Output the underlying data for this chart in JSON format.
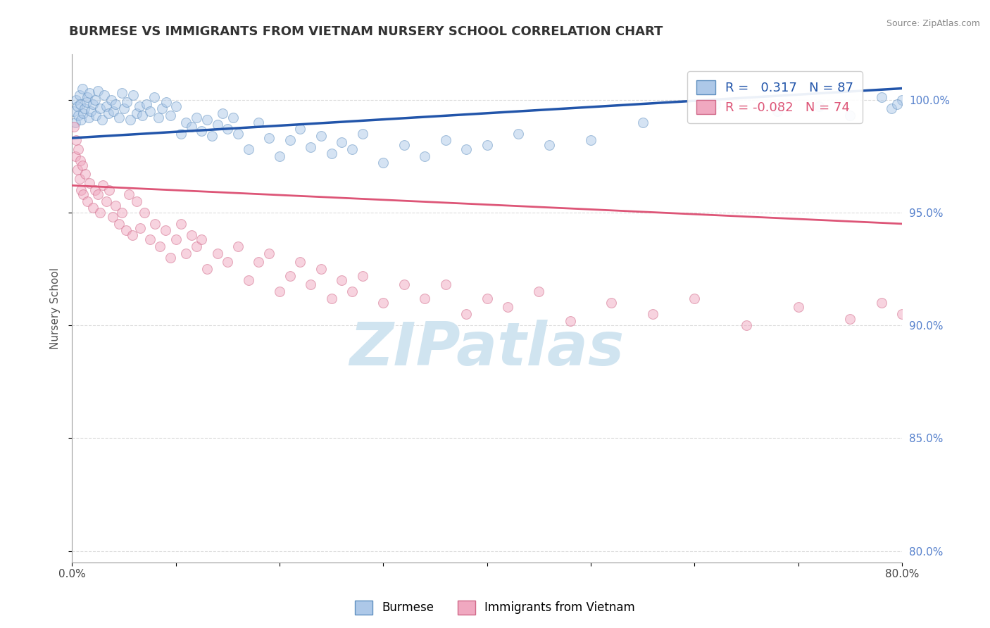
{
  "title": "BURMESE VS IMMIGRANTS FROM VIETNAM NURSERY SCHOOL CORRELATION CHART",
  "source_text": "Source: ZipAtlas.com",
  "ylabel": "Nursery School",
  "xlim": [
    0.0,
    80.0
  ],
  "ylim": [
    79.5,
    102.0
  ],
  "xticks": [
    0.0,
    10.0,
    20.0,
    30.0,
    40.0,
    50.0,
    60.0,
    70.0,
    80.0
  ],
  "xtick_labels": [
    "0.0%",
    "",
    "",
    "",
    "",
    "",
    "",
    "",
    "80.0%"
  ],
  "yticks": [
    80.0,
    85.0,
    90.0,
    95.0,
    100.0
  ],
  "ytick_labels": [
    "80.0%",
    "85.0%",
    "90.0%",
    "95.0%",
    "100.0%"
  ],
  "burmese_color": "#adc8e8",
  "vietnam_color": "#f0a8c0",
  "burmese_edge_color": "#6090c0",
  "vietnam_edge_color": "#d06888",
  "burmese_line_color": "#2255aa",
  "vietnam_line_color": "#dd5577",
  "R_burmese": 0.317,
  "N_burmese": 87,
  "R_vietnam": -0.082,
  "N_vietnam": 74,
  "marker_size": 100,
  "alpha": 0.5,
  "title_fontsize": 13,
  "axis_label_fontsize": 11,
  "tick_fontsize": 11,
  "legend_fontsize": 13,
  "watermark_color": "#d0e4f0",
  "background_color": "#ffffff",
  "grid_color": "#cccccc",
  "grid_linestyle": "--",
  "grid_alpha": 0.7,
  "burmese_x": [
    0.2,
    0.3,
    0.4,
    0.5,
    0.6,
    0.7,
    0.8,
    0.9,
    1.0,
    1.1,
    1.2,
    1.4,
    1.5,
    1.6,
    1.7,
    1.8,
    2.0,
    2.2,
    2.3,
    2.5,
    2.7,
    2.9,
    3.1,
    3.3,
    3.5,
    3.8,
    4.0,
    4.2,
    4.5,
    4.8,
    5.0,
    5.3,
    5.6,
    5.9,
    6.2,
    6.5,
    6.8,
    7.2,
    7.5,
    7.9,
    8.3,
    8.7,
    9.1,
    9.5,
    10.0,
    10.5,
    11.0,
    11.5,
    12.0,
    12.5,
    13.0,
    13.5,
    14.0,
    14.5,
    15.0,
    15.5,
    16.0,
    17.0,
    18.0,
    19.0,
    20.0,
    21.0,
    22.0,
    23.0,
    24.0,
    25.0,
    26.0,
    27.0,
    28.0,
    30.0,
    32.0,
    34.0,
    36.0,
    38.0,
    40.0,
    43.0,
    46.0,
    50.0,
    55.0,
    62.0,
    68.0,
    72.0,
    75.0,
    78.0,
    79.0,
    80.0,
    79.5
  ],
  "burmese_y": [
    99.5,
    99.0,
    100.0,
    99.7,
    99.3,
    100.2,
    99.8,
    99.1,
    100.5,
    99.4,
    99.6,
    99.9,
    100.1,
    99.2,
    100.3,
    99.5,
    99.8,
    100.0,
    99.3,
    100.4,
    99.6,
    99.1,
    100.2,
    99.7,
    99.4,
    100.0,
    99.5,
    99.8,
    99.2,
    100.3,
    99.6,
    99.9,
    99.1,
    100.2,
    99.4,
    99.7,
    99.3,
    99.8,
    99.5,
    100.1,
    99.2,
    99.6,
    99.9,
    99.3,
    99.7,
    98.5,
    99.0,
    98.8,
    99.2,
    98.6,
    99.1,
    98.4,
    98.9,
    99.4,
    98.7,
    99.2,
    98.5,
    97.8,
    99.0,
    98.3,
    97.5,
    98.2,
    98.7,
    97.9,
    98.4,
    97.6,
    98.1,
    97.8,
    98.5,
    97.2,
    98.0,
    97.5,
    98.2,
    97.8,
    98.0,
    98.5,
    98.0,
    98.2,
    99.0,
    99.8,
    99.5,
    99.7,
    99.3,
    100.1,
    99.6,
    100.0,
    99.8
  ],
  "vietnam_x": [
    0.2,
    0.3,
    0.4,
    0.5,
    0.6,
    0.7,
    0.8,
    0.9,
    1.0,
    1.1,
    1.3,
    1.5,
    1.7,
    2.0,
    2.2,
    2.5,
    2.7,
    3.0,
    3.3,
    3.6,
    3.9,
    4.2,
    4.5,
    4.8,
    5.2,
    5.5,
    5.8,
    6.2,
    6.6,
    7.0,
    7.5,
    8.0,
    8.5,
    9.0,
    9.5,
    10.0,
    10.5,
    11.0,
    11.5,
    12.0,
    12.5,
    13.0,
    14.0,
    15.0,
    16.0,
    17.0,
    18.0,
    19.0,
    20.0,
    21.0,
    22.0,
    23.0,
    24.0,
    25.0,
    26.0,
    27.0,
    28.0,
    30.0,
    32.0,
    34.0,
    36.0,
    38.0,
    40.0,
    42.0,
    45.0,
    48.0,
    52.0,
    56.0,
    60.0,
    65.0,
    70.0,
    75.0,
    78.0,
    80.0
  ],
  "vietnam_y": [
    98.8,
    97.5,
    98.2,
    96.9,
    97.8,
    96.5,
    97.3,
    96.0,
    97.1,
    95.8,
    96.7,
    95.5,
    96.3,
    95.2,
    96.0,
    95.8,
    95.0,
    96.2,
    95.5,
    96.0,
    94.8,
    95.3,
    94.5,
    95.0,
    94.2,
    95.8,
    94.0,
    95.5,
    94.3,
    95.0,
    93.8,
    94.5,
    93.5,
    94.2,
    93.0,
    93.8,
    94.5,
    93.2,
    94.0,
    93.5,
    93.8,
    92.5,
    93.2,
    92.8,
    93.5,
    92.0,
    92.8,
    93.2,
    91.5,
    92.2,
    92.8,
    91.8,
    92.5,
    91.2,
    92.0,
    91.5,
    92.2,
    91.0,
    91.8,
    91.2,
    91.8,
    90.5,
    91.2,
    90.8,
    91.5,
    90.2,
    91.0,
    90.5,
    91.2,
    90.0,
    90.8,
    90.3,
    91.0,
    90.5
  ],
  "blue_line_x0": 0.0,
  "blue_line_y0": 98.3,
  "blue_line_x1": 80.0,
  "blue_line_y1": 100.5,
  "pink_line_x0": 0.0,
  "pink_line_y0": 96.2,
  "pink_line_x1": 80.0,
  "pink_line_y1": 94.5
}
